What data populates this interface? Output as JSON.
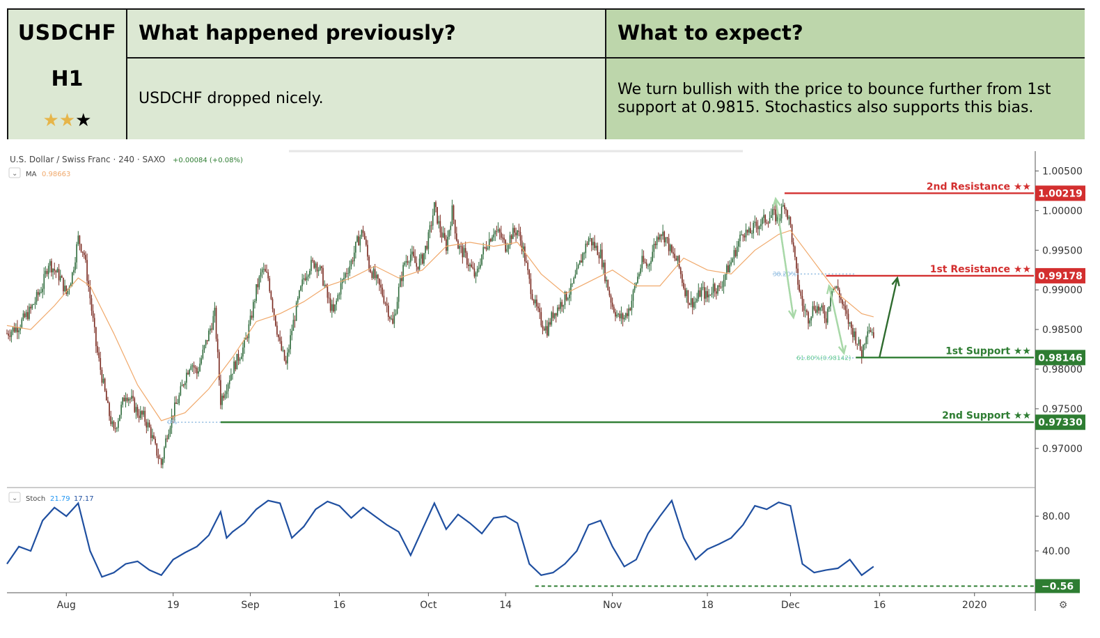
{
  "header": {
    "symbol": "USDCHF",
    "timeframe": "H1",
    "stars_filled": 2,
    "stars_total": 3,
    "prev_title": "What happened previously?",
    "prev_body": "USDCHF dropped nicely.",
    "expect_title": "What to expect?",
    "expect_body_line1": "We turn bullish with the price to bounce further from 1st",
    "expect_body_line2": "support at 0.9815. Stochastics also supports this bias."
  },
  "colors": {
    "up_candle": "#2f6b3c",
    "down_candle": "#7a2a20",
    "ma": "#f0a86a",
    "stoch": "#1f4fa0",
    "resistance": "#d32f2f",
    "support": "#2e7d32",
    "fib": "#8fbbe0",
    "arrow_light": "#a8d8a8",
    "arrow_dark": "#2e6b2e"
  },
  "chart_data": [
    {
      "type": "line",
      "subtype": "candlestick",
      "title": "U.S. Dollar / Swiss Franc · 240 · SAXO",
      "change": "+0.00084 (+0.08%)",
      "ma_label": "MA",
      "ma_value": "0.98663",
      "ylim": [
        0.9655,
        1.0075
      ],
      "y_ticks": [
        "1.00500",
        "1.00000",
        "0.99500",
        "0.99000",
        "0.98500",
        "0.98000",
        "0.97500",
        "0.97000"
      ],
      "y_tick_values": [
        1.005,
        1.0,
        0.995,
        0.99,
        0.985,
        0.98,
        0.975,
        0.97
      ],
      "x_ticks": [
        "Aug",
        "19",
        "Sep",
        "16",
        "Oct",
        "14",
        "Nov",
        "18",
        "Dec",
        "16",
        "2020"
      ],
      "x_tick_days": [
        0,
        18,
        31,
        46,
        61,
        74,
        92,
        108,
        122,
        137,
        153
      ],
      "x_range_days": [
        -10,
        163
      ],
      "close_path": [
        {
          "d": -10,
          "v": 0.9845
        },
        {
          "d": -8,
          "v": 0.9855
        },
        {
          "d": -6,
          "v": 0.9875
        },
        {
          "d": -4,
          "v": 0.9905
        },
        {
          "d": -3,
          "v": 0.9935
        },
        {
          "d": -2,
          "v": 0.9925
        },
        {
          "d": -1,
          "v": 0.9915
        },
        {
          "d": 0,
          "v": 0.9895
        },
        {
          "d": 1,
          "v": 0.992
        },
        {
          "d": 2,
          "v": 0.9965
        },
        {
          "d": 3,
          "v": 0.9945
        },
        {
          "d": 4,
          "v": 0.989
        },
        {
          "d": 5,
          "v": 0.983
        },
        {
          "d": 6,
          "v": 0.979
        },
        {
          "d": 7,
          "v": 0.975
        },
        {
          "d": 8,
          "v": 0.972
        },
        {
          "d": 9,
          "v": 0.9745
        },
        {
          "d": 10,
          "v": 0.977
        },
        {
          "d": 11,
          "v": 0.976
        },
        {
          "d": 12,
          "v": 0.9745
        },
        {
          "d": 13,
          "v": 0.974
        },
        {
          "d": 14,
          "v": 0.9725
        },
        {
          "d": 15,
          "v": 0.97
        },
        {
          "d": 16,
          "v": 0.968
        },
        {
          "d": 17,
          "v": 0.972
        },
        {
          "d": 18,
          "v": 0.9745
        },
        {
          "d": 19,
          "v": 0.9765
        },
        {
          "d": 20,
          "v": 0.979
        },
        {
          "d": 21,
          "v": 0.981
        },
        {
          "d": 22,
          "v": 0.9795
        },
        {
          "d": 23,
          "v": 0.982
        },
        {
          "d": 24,
          "v": 0.9845
        },
        {
          "d": 25,
          "v": 0.987
        },
        {
          "d": 26,
          "v": 0.976
        },
        {
          "d": 27,
          "v": 0.978
        },
        {
          "d": 28,
          "v": 0.98
        },
        {
          "d": 29,
          "v": 0.9815
        },
        {
          "d": 30,
          "v": 0.983
        },
        {
          "d": 31,
          "v": 0.986
        },
        {
          "d": 32,
          "v": 0.99
        },
        {
          "d": 33,
          "v": 0.9925
        },
        {
          "d": 34,
          "v": 0.9915
        },
        {
          "d": 35,
          "v": 0.987
        },
        {
          "d": 36,
          "v": 0.983
        },
        {
          "d": 37,
          "v": 0.9805
        },
        {
          "d": 38,
          "v": 0.985
        },
        {
          "d": 39,
          "v": 0.9885
        },
        {
          "d": 40,
          "v": 0.9915
        },
        {
          "d": 41,
          "v": 0.993
        },
        {
          "d": 42,
          "v": 0.9935
        },
        {
          "d": 43,
          "v": 0.992
        },
        {
          "d": 44,
          "v": 0.989
        },
        {
          "d": 45,
          "v": 0.987
        },
        {
          "d": 46,
          "v": 0.99
        },
        {
          "d": 47,
          "v": 0.992
        },
        {
          "d": 48,
          "v": 0.9935
        },
        {
          "d": 49,
          "v": 0.996
        },
        {
          "d": 50,
          "v": 0.9975
        },
        {
          "d": 51,
          "v": 0.993
        },
        {
          "d": 52,
          "v": 0.9915
        },
        {
          "d": 53,
          "v": 0.99
        },
        {
          "d": 54,
          "v": 0.988
        },
        {
          "d": 55,
          "v": 0.9855
        },
        {
          "d": 56,
          "v": 0.99
        },
        {
          "d": 57,
          "v": 0.9935
        },
        {
          "d": 58,
          "v": 0.9945
        },
        {
          "d": 59,
          "v": 0.993
        },
        {
          "d": 60,
          "v": 0.994
        },
        {
          "d": 61,
          "v": 0.9965
        },
        {
          "d": 62,
          "v": 1.0005
        },
        {
          "d": 63,
          "v": 0.9975
        },
        {
          "d": 64,
          "v": 0.9955
        },
        {
          "d": 65,
          "v": 1.0
        },
        {
          "d": 66,
          "v": 0.9955
        },
        {
          "d": 67,
          "v": 0.9945
        },
        {
          "d": 68,
          "v": 0.993
        },
        {
          "d": 69,
          "v": 0.9915
        },
        {
          "d": 70,
          "v": 0.9945
        },
        {
          "d": 71,
          "v": 0.996
        },
        {
          "d": 72,
          "v": 0.9975
        },
        {
          "d": 73,
          "v": 0.997
        },
        {
          "d": 74,
          "v": 0.9955
        },
        {
          "d": 75,
          "v": 0.997
        },
        {
          "d": 76,
          "v": 0.9975
        },
        {
          "d": 77,
          "v": 0.995
        },
        {
          "d": 78,
          "v": 0.991
        },
        {
          "d": 79,
          "v": 0.988
        },
        {
          "d": 80,
          "v": 0.986
        },
        {
          "d": 81,
          "v": 0.985
        },
        {
          "d": 82,
          "v": 0.987
        },
        {
          "d": 83,
          "v": 0.988
        },
        {
          "d": 84,
          "v": 0.989
        },
        {
          "d": 85,
          "v": 0.99
        },
        {
          "d": 86,
          "v": 0.992
        },
        {
          "d": 87,
          "v": 0.9945
        },
        {
          "d": 88,
          "v": 0.9965
        },
        {
          "d": 89,
          "v": 0.9955
        },
        {
          "d": 90,
          "v": 0.9945
        },
        {
          "d": 91,
          "v": 0.991
        },
        {
          "d": 92,
          "v": 0.988
        },
        {
          "d": 93,
          "v": 0.9865
        },
        {
          "d": 94,
          "v": 0.9865
        },
        {
          "d": 95,
          "v": 0.988
        },
        {
          "d": 96,
          "v": 0.991
        },
        {
          "d": 97,
          "v": 0.9935
        },
        {
          "d": 98,
          "v": 0.993
        },
        {
          "d": 99,
          "v": 0.9955
        },
        {
          "d": 100,
          "v": 0.9975
        },
        {
          "d": 101,
          "v": 0.9965
        },
        {
          "d": 102,
          "v": 0.9945
        },
        {
          "d": 103,
          "v": 0.9935
        },
        {
          "d": 104,
          "v": 0.9905
        },
        {
          "d": 105,
          "v": 0.9885
        },
        {
          "d": 106,
          "v": 0.9885
        },
        {
          "d": 107,
          "v": 0.99
        },
        {
          "d": 108,
          "v": 0.989
        },
        {
          "d": 109,
          "v": 0.9905
        },
        {
          "d": 110,
          "v": 0.99
        },
        {
          "d": 111,
          "v": 0.992
        },
        {
          "d": 112,
          "v": 0.9935
        },
        {
          "d": 113,
          "v": 0.9955
        },
        {
          "d": 114,
          "v": 0.9975
        },
        {
          "d": 115,
          "v": 0.997
        },
        {
          "d": 116,
          "v": 0.998
        },
        {
          "d": 117,
          "v": 0.9985
        },
        {
          "d": 118,
          "v": 0.999
        },
        {
          "d": 119,
          "v": 0.9995
        },
        {
          "d": 120,
          "v": 0.999
        },
        {
          "d": 121,
          "v": 1.001
        },
        {
          "d": 122,
          "v": 0.998
        },
        {
          "d": 123,
          "v": 0.992
        },
        {
          "d": 124,
          "v": 0.988
        },
        {
          "d": 125,
          "v": 0.9865
        },
        {
          "d": 126,
          "v": 0.988
        },
        {
          "d": 127,
          "v": 0.9875
        },
        {
          "d": 128,
          "v": 0.9865
        },
        {
          "d": 129,
          "v": 0.9905
        },
        {
          "d": 130,
          "v": 0.99
        },
        {
          "d": 131,
          "v": 0.9875
        },
        {
          "d": 132,
          "v": 0.9855
        },
        {
          "d": 133,
          "v": 0.984
        },
        {
          "d": 134,
          "v": 0.982
        },
        {
          "d": 135,
          "v": 0.9855
        },
        {
          "d": 136,
          "v": 0.9845
        }
      ],
      "ma_path": [
        {
          "d": -10,
          "v": 0.9855
        },
        {
          "d": -6,
          "v": 0.985
        },
        {
          "d": -2,
          "v": 0.988
        },
        {
          "d": 2,
          "v": 0.9915
        },
        {
          "d": 4,
          "v": 0.9905
        },
        {
          "d": 8,
          "v": 0.9845
        },
        {
          "d": 12,
          "v": 0.978
        },
        {
          "d": 16,
          "v": 0.9735
        },
        {
          "d": 20,
          "v": 0.9745
        },
        {
          "d": 24,
          "v": 0.9775
        },
        {
          "d": 28,
          "v": 0.9815
        },
        {
          "d": 32,
          "v": 0.986
        },
        {
          "d": 36,
          "v": 0.987
        },
        {
          "d": 40,
          "v": 0.9885
        },
        {
          "d": 44,
          "v": 0.9905
        },
        {
          "d": 48,
          "v": 0.9915
        },
        {
          "d": 52,
          "v": 0.993
        },
        {
          "d": 56,
          "v": 0.9915
        },
        {
          "d": 60,
          "v": 0.9925
        },
        {
          "d": 64,
          "v": 0.9955
        },
        {
          "d": 68,
          "v": 0.996
        },
        {
          "d": 72,
          "v": 0.9955
        },
        {
          "d": 76,
          "v": 0.996
        },
        {
          "d": 80,
          "v": 0.992
        },
        {
          "d": 84,
          "v": 0.9895
        },
        {
          "d": 88,
          "v": 0.991
        },
        {
          "d": 92,
          "v": 0.9925
        },
        {
          "d": 96,
          "v": 0.9905
        },
        {
          "d": 100,
          "v": 0.9905
        },
        {
          "d": 104,
          "v": 0.994
        },
        {
          "d": 108,
          "v": 0.9925
        },
        {
          "d": 112,
          "v": 0.992
        },
        {
          "d": 116,
          "v": 0.995
        },
        {
          "d": 120,
          "v": 0.997
        },
        {
          "d": 122,
          "v": 0.9975
        },
        {
          "d": 126,
          "v": 0.9935
        },
        {
          "d": 130,
          "v": 0.9895
        },
        {
          "d": 134,
          "v": 0.987
        },
        {
          "d": 136,
          "v": 0.9866
        }
      ],
      "levels": [
        {
          "name": "2nd Resistance ★★",
          "value": 1.00219,
          "label": "1.00219",
          "kind": "resistance",
          "start_day": 121
        },
        {
          "name": "1st Resistance ★★",
          "value": 0.99178,
          "label": "0.99178",
          "kind": "resistance",
          "start_day": 128
        },
        {
          "name": "1st Support ★★",
          "value": 0.98146,
          "label": "0.98146",
          "kind": "support",
          "start_day": 133
        },
        {
          "name": "2nd Support ★★",
          "value": 0.9733,
          "label": "0.97330",
          "kind": "support",
          "start_day": 26
        }
      ],
      "fib_levels": [
        {
          "label": "38.20%",
          "value": 0.992,
          "from_day": 119,
          "to_day": 133
        },
        {
          "label": "61.80%(0.98142)",
          "value": 0.98142,
          "from_day": 123,
          "to_day": 133
        },
        {
          "label": "0%",
          "value": 0.9733,
          "from_day": 17,
          "to_day": 26
        }
      ]
    },
    {
      "type": "line",
      "title": "Stoch",
      "value_k": "21.79",
      "value_d": "17.17",
      "ylim": [
        -5,
        105
      ],
      "y_ticks": [
        "80.00",
        "40.00"
      ],
      "y_tick_values": [
        80,
        40
      ],
      "last_label": "−0.56",
      "last_value": -0.56,
      "values": [
        {
          "d": -10,
          "v": 25
        },
        {
          "d": -8,
          "v": 45
        },
        {
          "d": -6,
          "v": 40
        },
        {
          "d": -4,
          "v": 75
        },
        {
          "d": -2,
          "v": 90
        },
        {
          "d": 0,
          "v": 80
        },
        {
          "d": 2,
          "v": 95
        },
        {
          "d": 4,
          "v": 40
        },
        {
          "d": 6,
          "v": 10
        },
        {
          "d": 8,
          "v": 15
        },
        {
          "d": 10,
          "v": 25
        },
        {
          "d": 12,
          "v": 28
        },
        {
          "d": 14,
          "v": 18
        },
        {
          "d": 16,
          "v": 12
        },
        {
          "d": 18,
          "v": 30
        },
        {
          "d": 20,
          "v": 38
        },
        {
          "d": 22,
          "v": 45
        },
        {
          "d": 24,
          "v": 58
        },
        {
          "d": 26,
          "v": 85
        },
        {
          "d": 27,
          "v": 55
        },
        {
          "d": 28,
          "v": 62
        },
        {
          "d": 30,
          "v": 72
        },
        {
          "d": 32,
          "v": 88
        },
        {
          "d": 34,
          "v": 98
        },
        {
          "d": 36,
          "v": 95
        },
        {
          "d": 38,
          "v": 55
        },
        {
          "d": 40,
          "v": 68
        },
        {
          "d": 42,
          "v": 88
        },
        {
          "d": 44,
          "v": 97
        },
        {
          "d": 46,
          "v": 92
        },
        {
          "d": 48,
          "v": 78
        },
        {
          "d": 50,
          "v": 90
        },
        {
          "d": 52,
          "v": 80
        },
        {
          "d": 54,
          "v": 70
        },
        {
          "d": 56,
          "v": 62
        },
        {
          "d": 58,
          "v": 35
        },
        {
          "d": 60,
          "v": 65
        },
        {
          "d": 62,
          "v": 95
        },
        {
          "d": 64,
          "v": 65
        },
        {
          "d": 66,
          "v": 82
        },
        {
          "d": 68,
          "v": 72
        },
        {
          "d": 70,
          "v": 60
        },
        {
          "d": 72,
          "v": 78
        },
        {
          "d": 74,
          "v": 80
        },
        {
          "d": 76,
          "v": 72
        },
        {
          "d": 78,
          "v": 25
        },
        {
          "d": 80,
          "v": 12
        },
        {
          "d": 82,
          "v": 15
        },
        {
          "d": 84,
          "v": 25
        },
        {
          "d": 86,
          "v": 40
        },
        {
          "d": 88,
          "v": 70
        },
        {
          "d": 90,
          "v": 75
        },
        {
          "d": 92,
          "v": 45
        },
        {
          "d": 94,
          "v": 22
        },
        {
          "d": 96,
          "v": 30
        },
        {
          "d": 98,
          "v": 60
        },
        {
          "d": 100,
          "v": 80
        },
        {
          "d": 102,
          "v": 98
        },
        {
          "d": 104,
          "v": 55
        },
        {
          "d": 106,
          "v": 30
        },
        {
          "d": 108,
          "v": 42
        },
        {
          "d": 110,
          "v": 48
        },
        {
          "d": 112,
          "v": 55
        },
        {
          "d": 114,
          "v": 70
        },
        {
          "d": 116,
          "v": 92
        },
        {
          "d": 118,
          "v": 88
        },
        {
          "d": 120,
          "v": 96
        },
        {
          "d": 122,
          "v": 92
        },
        {
          "d": 124,
          "v": 25
        },
        {
          "d": 126,
          "v": 15
        },
        {
          "d": 128,
          "v": 18
        },
        {
          "d": 130,
          "v": 20
        },
        {
          "d": 132,
          "v": 30
        },
        {
          "d": 134,
          "v": 12
        },
        {
          "d": 136,
          "v": 22
        }
      ],
      "zero_line_from_day": 79
    }
  ]
}
